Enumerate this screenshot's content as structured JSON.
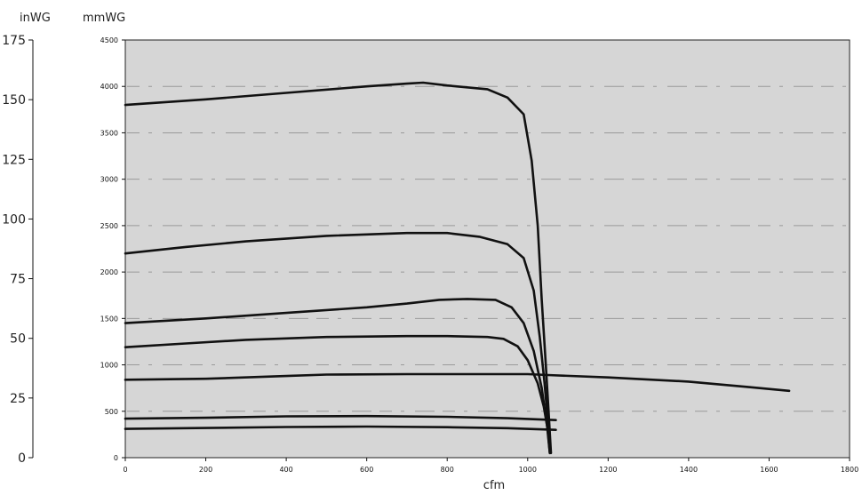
{
  "chart_data": {
    "type": "line",
    "title": "",
    "xlabel": "cfm",
    "ylabel": "mmWG",
    "secondary_ylabel": "inWG",
    "xlim": [
      0,
      1800
    ],
    "ylim": [
      0,
      4500
    ],
    "secondary_ylim": [
      0,
      175
    ],
    "x_ticks": [
      "0",
      "200",
      "400",
      "600",
      "800",
      "1000",
      "1200",
      "1400",
      "1600",
      "1800"
    ],
    "y_ticks": [
      "0",
      "500",
      "1000",
      "1500",
      "2000",
      "2500",
      "3000",
      "3500",
      "4000",
      "4500"
    ],
    "secondary_y_ticks": [
      "0",
      "25",
      "50",
      "75",
      "100",
      "125",
      "150",
      "175"
    ],
    "grid": true,
    "legend": "none",
    "plot_background": "#d6d6d6",
    "line_color": "#111111",
    "series": [
      {
        "points": [
          [
            0,
            3800
          ],
          [
            200,
            3860
          ],
          [
            400,
            3930
          ],
          [
            600,
            4000
          ],
          [
            700,
            4030
          ],
          [
            740,
            4040
          ],
          [
            800,
            4010
          ],
          [
            900,
            3970
          ],
          [
            950,
            3880
          ],
          [
            990,
            3700
          ],
          [
            1010,
            3200
          ],
          [
            1025,
            2500
          ],
          [
            1035,
            1700
          ],
          [
            1045,
            1000
          ],
          [
            1052,
            500
          ],
          [
            1058,
            50
          ]
        ]
      },
      {
        "points": [
          [
            0,
            2200
          ],
          [
            150,
            2270
          ],
          [
            300,
            2330
          ],
          [
            500,
            2390
          ],
          [
            700,
            2420
          ],
          [
            800,
            2420
          ],
          [
            880,
            2380
          ],
          [
            950,
            2300
          ],
          [
            990,
            2150
          ],
          [
            1015,
            1800
          ],
          [
            1030,
            1300
          ],
          [
            1042,
            800
          ],
          [
            1050,
            400
          ],
          [
            1056,
            50
          ]
        ]
      },
      {
        "points": [
          [
            0,
            1450
          ],
          [
            200,
            1500
          ],
          [
            400,
            1560
          ],
          [
            600,
            1620
          ],
          [
            700,
            1660
          ],
          [
            780,
            1700
          ],
          [
            850,
            1710
          ],
          [
            920,
            1700
          ],
          [
            960,
            1620
          ],
          [
            990,
            1450
          ],
          [
            1015,
            1150
          ],
          [
            1035,
            750
          ],
          [
            1048,
            350
          ],
          [
            1055,
            50
          ]
        ]
      },
      {
        "points": [
          [
            0,
            1190
          ],
          [
            150,
            1230
          ],
          [
            300,
            1270
          ],
          [
            500,
            1300
          ],
          [
            700,
            1310
          ],
          [
            800,
            1310
          ],
          [
            900,
            1300
          ],
          [
            940,
            1280
          ],
          [
            975,
            1200
          ],
          [
            1000,
            1050
          ],
          [
            1025,
            800
          ],
          [
            1040,
            550
          ],
          [
            1050,
            300
          ],
          [
            1055,
            50
          ]
        ]
      },
      {
        "points": [
          [
            0,
            840
          ],
          [
            200,
            850
          ],
          [
            400,
            880
          ],
          [
            500,
            895
          ],
          [
            700,
            900
          ],
          [
            900,
            900
          ],
          [
            1000,
            900
          ],
          [
            1050,
            890
          ],
          [
            1200,
            865
          ],
          [
            1400,
            820
          ],
          [
            1550,
            760
          ],
          [
            1650,
            720
          ]
        ]
      },
      {
        "points": [
          [
            0,
            420
          ],
          [
            200,
            430
          ],
          [
            400,
            445
          ],
          [
            600,
            448
          ],
          [
            800,
            440
          ],
          [
            950,
            425
          ],
          [
            1070,
            405
          ]
        ]
      },
      {
        "points": [
          [
            0,
            310
          ],
          [
            200,
            320
          ],
          [
            400,
            330
          ],
          [
            600,
            335
          ],
          [
            800,
            328
          ],
          [
            950,
            318
          ],
          [
            1070,
            300
          ]
        ]
      }
    ]
  }
}
